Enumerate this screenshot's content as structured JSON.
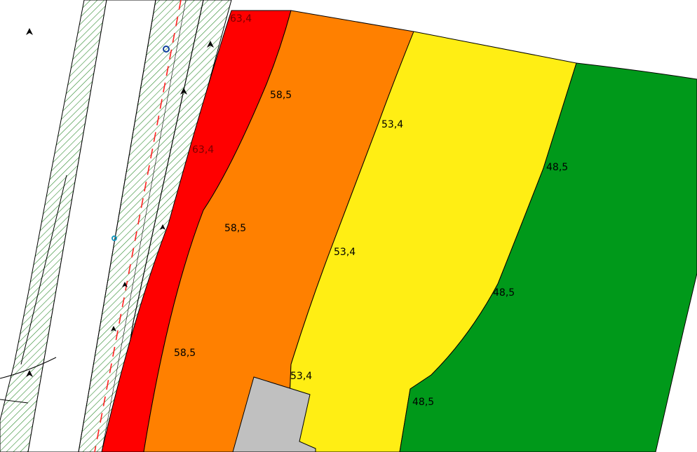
{
  "colors": {
    "band_red": "#ff0000",
    "band_orange": "#ff8000",
    "band_yellow": "#ffee14",
    "band_green": "#00991a",
    "building": "#c0c0c0",
    "hatch": "#2e8b2e",
    "centerline": "#ff2020"
  },
  "contour_labels": {
    "red_top": "63,4",
    "red_mid": "63,4",
    "orange_top": "58,5",
    "orange_mid": "58,5",
    "orange_bot": "58,5",
    "yellow_top": "53,4",
    "yellow_mid": "53,4",
    "yellow_bot": "53,4",
    "green_top": "48,5",
    "green_mid": "48,5",
    "green_bot": "48,5"
  }
}
